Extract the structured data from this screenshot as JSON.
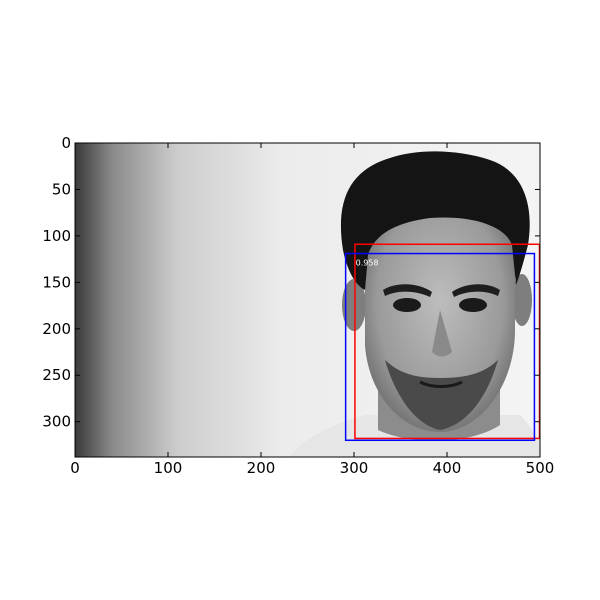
{
  "figure": {
    "image_extent": {
      "x": [
        0,
        500
      ],
      "y": [
        0,
        338
      ]
    },
    "x_ticks": [
      0,
      100,
      200,
      300,
      400,
      500
    ],
    "y_ticks": [
      0,
      50,
      100,
      150,
      200,
      250,
      300
    ],
    "boxes": [
      {
        "name": "ground-truth-box",
        "color": "#ff0000",
        "x1": 301,
        "y1": 109,
        "x2": 500,
        "y2": 318
      },
      {
        "name": "detection-box",
        "color": "#0000ff",
        "x1": 291,
        "y1": 119,
        "x2": 494,
        "y2": 320,
        "score": "0.958"
      }
    ]
  }
}
